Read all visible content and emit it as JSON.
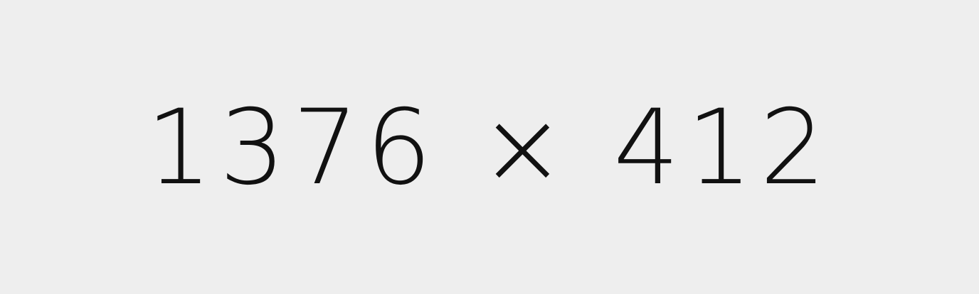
{
  "placeholder": {
    "text": "1376 × 412",
    "background_color": "#eeeeee",
    "text_color": "#111111"
  }
}
